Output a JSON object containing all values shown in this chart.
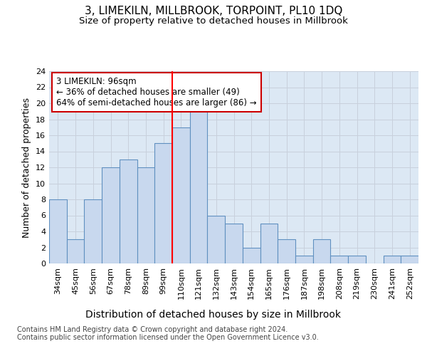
{
  "title": "3, LIMEKILN, MILLBROOK, TORPOINT, PL10 1DQ",
  "subtitle": "Size of property relative to detached houses in Millbrook",
  "xlabel": "Distribution of detached houses by size in Millbrook",
  "ylabel": "Number of detached properties",
  "categories": [
    "34sqm",
    "45sqm",
    "56sqm",
    "67sqm",
    "78sqm",
    "89sqm",
    "99sqm",
    "110sqm",
    "121sqm",
    "132sqm",
    "143sqm",
    "154sqm",
    "165sqm",
    "176sqm",
    "187sqm",
    "198sqm",
    "208sqm",
    "219sqm",
    "230sqm",
    "241sqm",
    "252sqm"
  ],
  "values": [
    8,
    3,
    8,
    12,
    13,
    12,
    15,
    17,
    19,
    6,
    5,
    2,
    5,
    3,
    1,
    3,
    1,
    1,
    0,
    1,
    1
  ],
  "bar_color": "#c8d8ee",
  "bar_edge_color": "#6090c0",
  "annotation_text": "3 LIMEKILN: 96sqm\n← 36% of detached houses are smaller (49)\n64% of semi-detached houses are larger (86) →",
  "annotation_box_color": "#ffffff",
  "annotation_box_edge_color": "#cc0000",
  "ylim": [
    0,
    24
  ],
  "yticks": [
    0,
    2,
    4,
    6,
    8,
    10,
    12,
    14,
    16,
    18,
    20,
    22,
    24
  ],
  "grid_color": "#c8d0dc",
  "bg_color": "#dce8f4",
  "title_fontsize": 11,
  "subtitle_fontsize": 9.5,
  "tick_fontsize": 8,
  "xlabel_fontsize": 10,
  "ylabel_fontsize": 9,
  "footer_text": "Contains HM Land Registry data © Crown copyright and database right 2024.\nContains public sector information licensed under the Open Government Licence v3.0.",
  "red_line_x": 6.5,
  "bar_width": 1.0
}
